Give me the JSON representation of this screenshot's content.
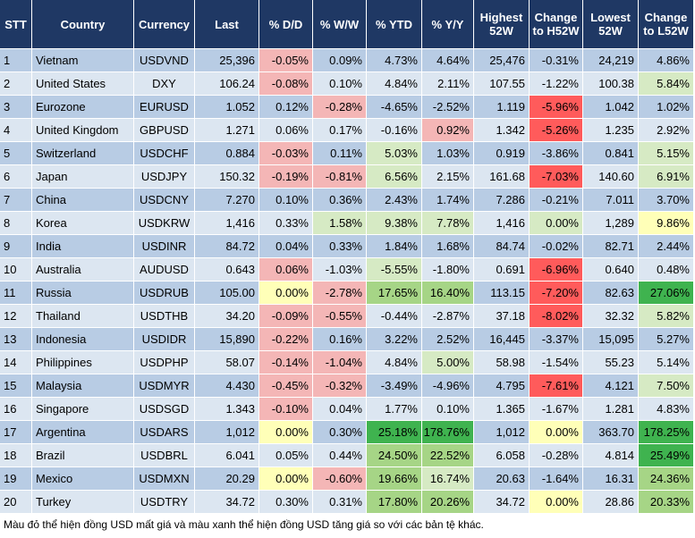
{
  "table": {
    "columns": [
      "STT",
      "Country",
      "Currency",
      "Last",
      "% D/D",
      "% W/W",
      "% YTD",
      "% Y/Y",
      "Highest 52W",
      "Change to H52W",
      "Lowest 52W",
      "Change to L52W"
    ],
    "rows": [
      [
        "1",
        "Vietnam",
        "USDVND",
        "25,396",
        "-0.05%",
        "0.09%",
        "4.73%",
        "4.64%",
        "25,476",
        "-0.31%",
        "24,219",
        "4.86%"
      ],
      [
        "2",
        "United States",
        "DXY",
        "106.24",
        "-0.08%",
        "0.10%",
        "4.84%",
        "2.11%",
        "107.55",
        "-1.22%",
        "100.38",
        "5.84%"
      ],
      [
        "3",
        "Eurozone",
        "EURUSD",
        "1.052",
        "0.12%",
        "-0.28%",
        "-4.65%",
        "-2.52%",
        "1.119",
        "-5.96%",
        "1.042",
        "1.02%"
      ],
      [
        "4",
        "United Kingdom",
        "GBPUSD",
        "1.271",
        "0.06%",
        "0.17%",
        "-0.16%",
        "0.92%",
        "1.342",
        "-5.26%",
        "1.235",
        "2.92%"
      ],
      [
        "5",
        "Switzerland",
        "USDCHF",
        "0.884",
        "-0.03%",
        "0.11%",
        "5.03%",
        "1.03%",
        "0.919",
        "-3.86%",
        "0.841",
        "5.15%"
      ],
      [
        "6",
        "Japan",
        "USDJPY",
        "150.32",
        "-0.19%",
        "-0.81%",
        "6.56%",
        "2.15%",
        "161.68",
        "-7.03%",
        "140.60",
        "6.91%"
      ],
      [
        "7",
        "China",
        "USDCNY",
        "7.270",
        "0.10%",
        "0.36%",
        "2.43%",
        "1.74%",
        "7.286",
        "-0.21%",
        "7.011",
        "3.70%"
      ],
      [
        "8",
        "Korea",
        "USDKRW",
        "1,416",
        "0.33%",
        "1.58%",
        "9.38%",
        "7.78%",
        "1,416",
        "0.00%",
        "1,289",
        "9.86%"
      ],
      [
        "9",
        "India",
        "USDINR",
        "84.72",
        "0.04%",
        "0.33%",
        "1.84%",
        "1.68%",
        "84.74",
        "-0.02%",
        "82.71",
        "2.44%"
      ],
      [
        "10",
        "Australia",
        "AUDUSD",
        "0.643",
        "0.06%",
        "-1.03%",
        "-5.55%",
        "-1.80%",
        "0.691",
        "-6.96%",
        "0.640",
        "0.48%"
      ],
      [
        "11",
        "Russia",
        "USDRUB",
        "105.00",
        "0.00%",
        "-2.78%",
        "17.65%",
        "16.40%",
        "113.15",
        "-7.20%",
        "82.63",
        "27.06%"
      ],
      [
        "12",
        "Thailand",
        "USDTHB",
        "34.20",
        "-0.09%",
        "-0.55%",
        "-0.44%",
        "-2.87%",
        "37.18",
        "-8.02%",
        "32.32",
        "5.82%"
      ],
      [
        "13",
        "Indonesia",
        "USDIDR",
        "15,890",
        "-0.22%",
        "0.16%",
        "3.22%",
        "2.52%",
        "16,445",
        "-3.37%",
        "15,095",
        "5.27%"
      ],
      [
        "14",
        "Philippines",
        "USDPHP",
        "58.07",
        "-0.14%",
        "-1.04%",
        "4.84%",
        "5.00%",
        "58.98",
        "-1.54%",
        "55.23",
        "5.14%"
      ],
      [
        "15",
        "Malaysia",
        "USDMYR",
        "4.430",
        "-0.45%",
        "-0.32%",
        "-3.49%",
        "-4.96%",
        "4.795",
        "-7.61%",
        "4.121",
        "7.50%"
      ],
      [
        "16",
        "Singapore",
        "USDSGD",
        "1.343",
        "-0.10%",
        "0.04%",
        "1.77%",
        "0.10%",
        "1.365",
        "-1.67%",
        "1.281",
        "4.83%"
      ],
      [
        "17",
        "Argentina",
        "USDARS",
        "1,012",
        "0.00%",
        "0.30%",
        "25.18%",
        "178.76%",
        "1,012",
        "0.00%",
        "363.70",
        "178.25%"
      ],
      [
        "18",
        "Brazil",
        "USDBRL",
        "6.041",
        "0.05%",
        "0.44%",
        "24.50%",
        "22.52%",
        "6.058",
        "-0.28%",
        "4.814",
        "25.49%"
      ],
      [
        "19",
        "Mexico",
        "USDMXN",
        "20.29",
        "0.00%",
        "-0.60%",
        "19.66%",
        "16.74%",
        "20.63",
        "-1.64%",
        "16.31",
        "24.36%"
      ],
      [
        "20",
        "Turkey",
        "USDTRY",
        "34.72",
        "0.30%",
        "0.31%",
        "17.80%",
        "20.26%",
        "34.72",
        "0.00%",
        "28.86",
        "20.33%"
      ]
    ]
  },
  "footnote": "Màu đỏ thể hiện đồng USD mất giá và màu xanh thể hiện đồng USD tăng giá so với các bản tệ khác."
}
